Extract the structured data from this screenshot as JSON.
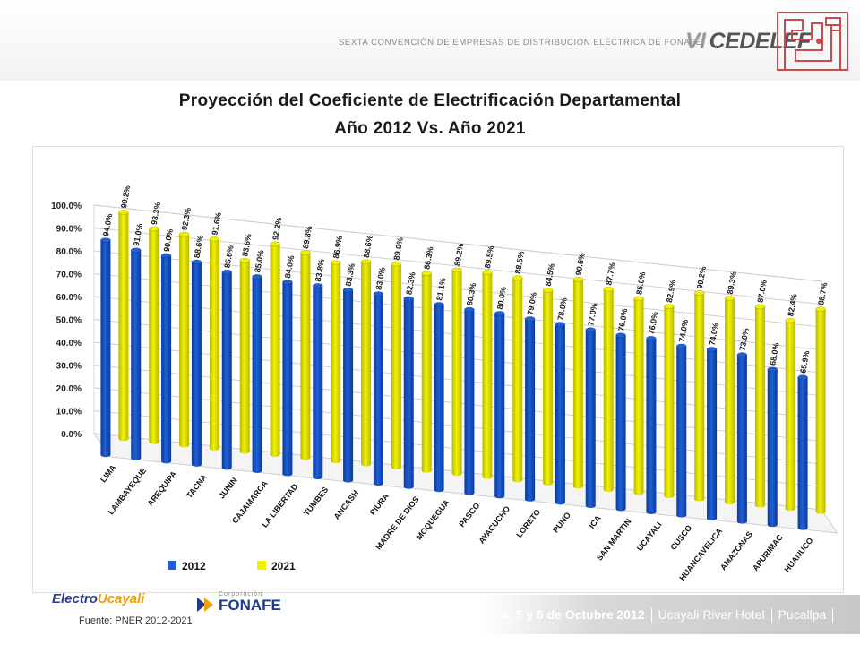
{
  "header": {
    "convention": "SEXTA CONVENCIÓN DE EMPRESAS DE DISTRIBUCIÓN ELÉCTRICA DE FONAFE",
    "logo_vi": "VI",
    "logo_name": "CEDELEF"
  },
  "title": {
    "line1": "Proyección del Coeficiente de Electrificación Departamental",
    "line2": "Año 2012 Vs. Año 2021"
  },
  "footer": {
    "source": "Fuente: PNER 2012-2021",
    "event_date": "4, 5 y 6 de Octubre 2012",
    "event_place": "Ucayali River Hotel",
    "event_city": "Pucallpa",
    "logo1_a": "Electro",
    "logo1_b": "Ucayali",
    "logo2_small": "Corporación",
    "logo2_name": "FONAFE"
  },
  "colors": {
    "series_2012": "#1f5fd6",
    "series_2021": "#f2f200",
    "label_color": "#1a1a1a"
  },
  "chart_data": {
    "type": "bar",
    "title": "Proyección del Coeficiente de Electrificación Departamental Año 2012 Vs. Año 2021",
    "xlabel": "",
    "ylabel": "",
    "ylim": [
      0,
      100
    ],
    "yticks": [
      "0.0%",
      "10.0%",
      "20.0%",
      "30.0%",
      "40.0%",
      "50.0%",
      "60.0%",
      "70.0%",
      "80.0%",
      "90.0%",
      "100.0%"
    ],
    "grid": true,
    "legend": "bottom",
    "categories": [
      "LIMA",
      "LAMBAYEQUE",
      "AREQUIPA",
      "TACNA",
      "JUNIN",
      "CAJAMARCA",
      "LA LIBERTAD",
      "TUMBES",
      "ANCASH",
      "PIURA",
      "MADRE DE DIOS",
      "MOQUEGUA",
      "PASCO",
      "AYACUCHO",
      "LORETO",
      "PUNO",
      "ICA",
      "SAN MARTIN",
      "UCAYALI",
      "CUSCO",
      "HUANCAVELICA",
      "AMAZONAS",
      "APURIMAC",
      "HUANUCO"
    ],
    "series": [
      {
        "name": "2012",
        "values": [
          94.0,
          91.0,
          90.0,
          88.6,
          85.6,
          85.0,
          84.0,
          83.8,
          83.3,
          83.0,
          82.3,
          81.1,
          80.3,
          80.0,
          79.0,
          78.0,
          77.0,
          76.0,
          76.0,
          74.0,
          74.0,
          73.0,
          68.0,
          65.9
        ],
        "labels": [
          "94.0%",
          "91.0%",
          "90.0%",
          "88.6%",
          "85.6%",
          "85.0%",
          "84.0%",
          "83.8%",
          "83.3%",
          "83.0%",
          "82.3%",
          "81.1%",
          "80.3%",
          "80.0%",
          "79.0%",
          "78.0%",
          "77.0%",
          "76.0%",
          "76.0%",
          "74.0%",
          "74.0%",
          "73.0%",
          "68.0%",
          "65.9%"
        ]
      },
      {
        "name": "2021",
        "values": [
          99.2,
          93.3,
          92.3,
          91.6,
          83.6,
          92.2,
          89.8,
          86.9,
          88.6,
          89.0,
          86.3,
          89.2,
          89.5,
          88.5,
          84.5,
          90.6,
          87.7,
          85.0,
          82.9,
          90.2,
          89.3,
          87.0,
          82.4,
          88.7
        ],
        "labels": [
          "99.2%",
          "93.3%",
          "92.3%",
          "91.6%",
          "83.6%",
          "92.2%",
          "89.8%",
          "86.9%",
          "88.6%",
          "89.0%",
          "86.3%",
          "89.2%",
          "89.5%",
          "88.5%",
          "84.5%",
          "90.6%",
          "87.7%",
          "85.0%",
          "82.9%",
          "90.2%",
          "89.3%",
          "87.0%",
          "82.4%",
          "88.7%"
        ]
      }
    ]
  }
}
